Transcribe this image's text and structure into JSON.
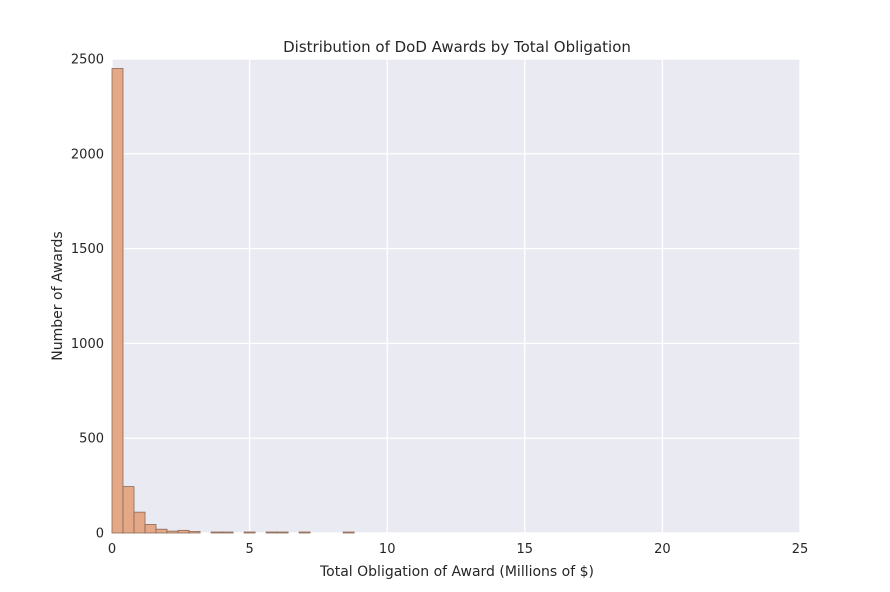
{
  "chart_data": {
    "type": "bar",
    "title": "Distribution of DoD Awards by Total Obligation",
    "xlabel": "Total Obligation of Award (Millions of $)",
    "ylabel": "Number of Awards",
    "xlim": [
      0,
      25
    ],
    "ylim": [
      0,
      2500
    ],
    "xticks": [
      "0",
      "5",
      "10",
      "15",
      "20",
      "25"
    ],
    "yticks": [
      "0",
      "500",
      "1000",
      "1500",
      "2000",
      "2500"
    ],
    "grid": true,
    "legend": "none",
    "bin_width": 0.4,
    "bins": [
      {
        "x0": 0.0,
        "x1": 0.4,
        "count": 2450
      },
      {
        "x0": 0.4,
        "x1": 0.8,
        "count": 245
      },
      {
        "x0": 0.8,
        "x1": 1.2,
        "count": 110
      },
      {
        "x0": 1.2,
        "x1": 1.6,
        "count": 45
      },
      {
        "x0": 1.6,
        "x1": 2.0,
        "count": 20
      },
      {
        "x0": 2.0,
        "x1": 2.4,
        "count": 10
      },
      {
        "x0": 2.4,
        "x1": 2.8,
        "count": 14
      },
      {
        "x0": 2.8,
        "x1": 3.2,
        "count": 8
      },
      {
        "x0": 3.6,
        "x1": 4.0,
        "count": 3
      },
      {
        "x0": 4.0,
        "x1": 4.4,
        "count": 2
      },
      {
        "x0": 4.8,
        "x1": 5.2,
        "count": 2
      },
      {
        "x0": 5.6,
        "x1": 6.0,
        "count": 2
      },
      {
        "x0": 6.0,
        "x1": 6.4,
        "count": 2
      },
      {
        "x0": 6.8,
        "x1": 7.2,
        "count": 2
      },
      {
        "x0": 8.4,
        "x1": 8.8,
        "count": 2
      }
    ]
  },
  "colors": {
    "bar_fill": "#e4a886",
    "bar_edge": "#8a6a58",
    "plot_background": "#eaeaf2",
    "grid": "#ffffff",
    "text": "#262626"
  }
}
